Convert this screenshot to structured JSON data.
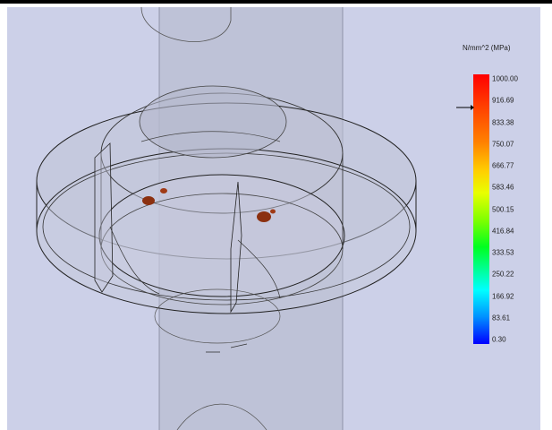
{
  "legend": {
    "unit": "N/mm^2 (MPa)",
    "ticks": [
      "1000.00",
      "916.69",
      "833.38",
      "750.07",
      "666.77",
      "583.46",
      "500.15",
      "416.84",
      "333.53",
      "250.22",
      "166.92",
      "83.61",
      "0.30"
    ],
    "pointer_value": "916.69",
    "colors": {
      "max": "#ff0000",
      "min": "#0000ff"
    }
  },
  "viewport": {
    "background": "#ccd0e8",
    "model_color": "#b8bccc",
    "hotspot_color": "#8b3010"
  }
}
